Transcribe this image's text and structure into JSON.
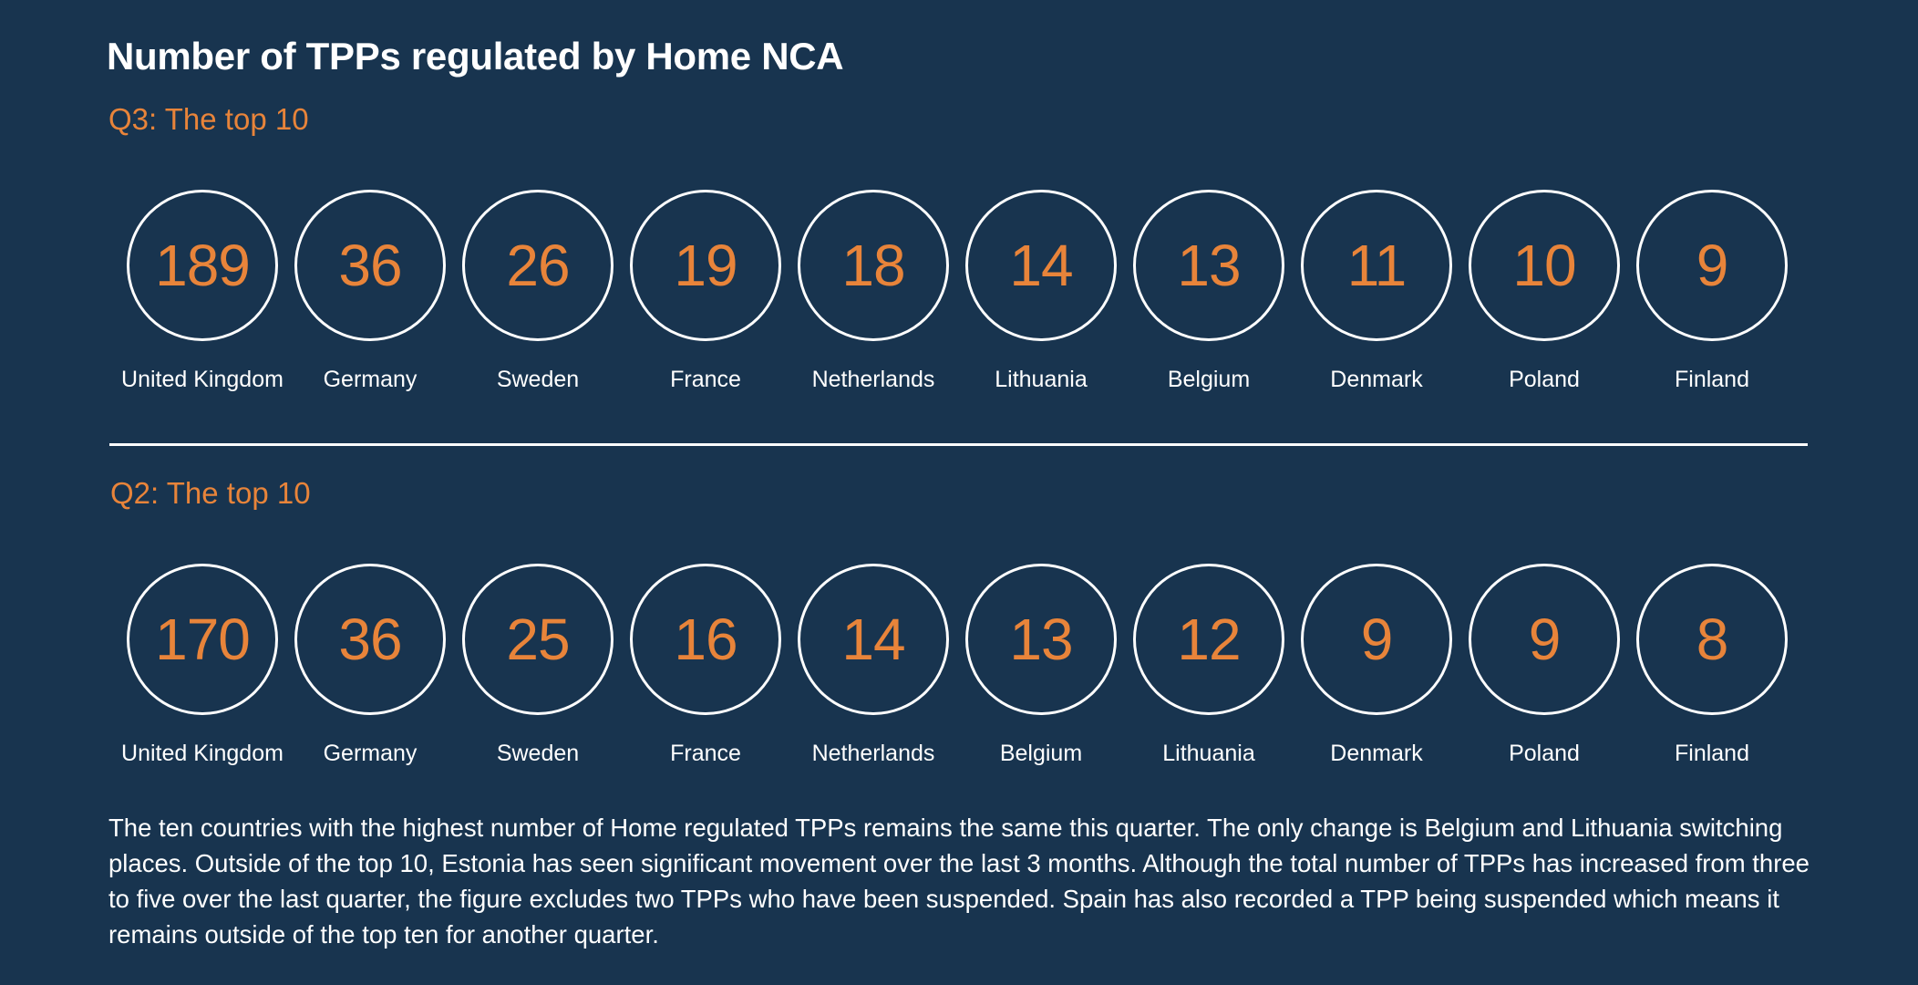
{
  "title": "Number of TPPs regulated by Home NCA",
  "chart_data": [
    {
      "type": "bubble",
      "title": "Q3:  The top 10",
      "categories": [
        "United Kingdom",
        "Germany",
        "Sweden",
        "France",
        "Netherlands",
        "Lithuania",
        "Belgium",
        "Denmark",
        "Poland",
        "Finland"
      ],
      "values": [
        189,
        36,
        26,
        19,
        18,
        14,
        13,
        11,
        10,
        9
      ]
    },
    {
      "type": "bubble",
      "title": "Q2:  The top 10",
      "categories": [
        "United Kingdom",
        "Germany",
        "Sweden",
        "France",
        "Netherlands",
        "Belgium",
        "Lithuania",
        "Denmark",
        "Poland",
        "Finland"
      ],
      "values": [
        170,
        36,
        25,
        16,
        14,
        13,
        12,
        9,
        9,
        8
      ]
    }
  ],
  "colors": {
    "background": "#18344f",
    "accent": "#e8843a",
    "text": "#ffffff"
  },
  "commentary": "The ten countries with the highest number of Home regulated TPPs remains the same this quarter.  The only change is Belgium and Lithuania switching places. Outside of the top 10, Estonia has seen significant movement over the last 3 months.  Although the total number of TPPs has increased from three to five over the last quarter, the figure excludes two TPPs who have been suspended.  Spain has also recorded a TPP being suspended which means it remains outside of the top ten for another quarter."
}
